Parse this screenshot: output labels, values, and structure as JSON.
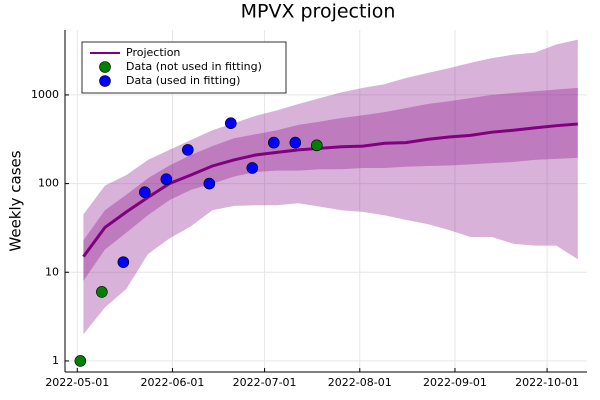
{
  "chart_data": {
    "type": "line",
    "title": "MPVX projection",
    "ylabel": "Weekly cases",
    "log_y": true,
    "grid": true,
    "legend": "top-left",
    "xlim": [
      "2022-04-27",
      "2022-10-14"
    ],
    "xticks": [
      "2022-05-01",
      "2022-06-01",
      "2022-07-01",
      "2022-08-01",
      "2022-09-01",
      "2022-10-01"
    ],
    "ylim": [
      0.75,
      5400
    ],
    "yticks": [
      1,
      10,
      100,
      1000
    ],
    "series": [
      {
        "name": "Projection",
        "type": "line",
        "color": "#800080",
        "x": [
          "2022-05-03",
          "2022-05-10",
          "2022-05-17",
          "2022-05-24",
          "2022-05-31",
          "2022-06-07",
          "2022-06-14",
          "2022-06-21",
          "2022-06-28",
          "2022-07-05",
          "2022-07-12",
          "2022-07-19",
          "2022-07-26",
          "2022-08-02",
          "2022-08-09",
          "2022-08-16",
          "2022-08-23",
          "2022-08-30",
          "2022-09-06",
          "2022-09-13",
          "2022-09-20",
          "2022-09-27",
          "2022-10-04",
          "2022-10-11"
        ],
        "values": [
          15,
          32,
          48,
          70,
          100,
          125,
          158,
          185,
          210,
          225,
          240,
          250,
          260,
          265,
          285,
          290,
          315,
          335,
          350,
          380,
          400,
          425,
          450,
          470
        ],
        "bands": [
          {
            "opacity": 0.3,
            "lower": [
              2,
              4,
              6.5,
              16,
              24,
              33,
              50,
              56,
              57,
              57,
              60,
              55,
              50,
              48,
              44,
              39,
              35,
              30,
              25,
              25,
              21,
              20,
              20,
              14
            ],
            "upper": [
              45,
              95,
              125,
              185,
              240,
              310,
              400,
              480,
              580,
              670,
              790,
              920,
              1070,
              1200,
              1320,
              1550,
              1770,
              2000,
              2300,
              2600,
              2850,
              3000,
              3700,
              4200
            ]
          },
          {
            "opacity": 0.3,
            "lower": [
              8,
              18,
              28,
              44,
              65,
              85,
              100,
              120,
              135,
              140,
              140,
              145,
              145,
              150,
              150,
              155,
              158,
              160,
              165,
              170,
              175,
              185,
              190,
              195
            ],
            "upper": [
              23,
              50,
              75,
              115,
              160,
              210,
              265,
              325,
              360,
              400,
              460,
              500,
              550,
              590,
              640,
              710,
              790,
              850,
              920,
              1000,
              1050,
              1100,
              1150,
              1200
            ]
          }
        ]
      },
      {
        "name": "Data (not used in fitting)",
        "type": "scatter",
        "color": "#008000",
        "x": [
          "2022-05-02",
          "2022-05-09",
          "2022-07-18"
        ],
        "values": [
          1,
          6,
          270
        ]
      },
      {
        "name": "Data (used in fitting)",
        "type": "scatter",
        "color": "#0000ff",
        "x": [
          "2022-05-16",
          "2022-05-23",
          "2022-05-30",
          "2022-06-06",
          "2022-06-13",
          "2022-06-20",
          "2022-06-27",
          "2022-07-04",
          "2022-07-11"
        ],
        "values": [
          13,
          80,
          112,
          240,
          100,
          480,
          150,
          290,
          290
        ]
      }
    ]
  }
}
